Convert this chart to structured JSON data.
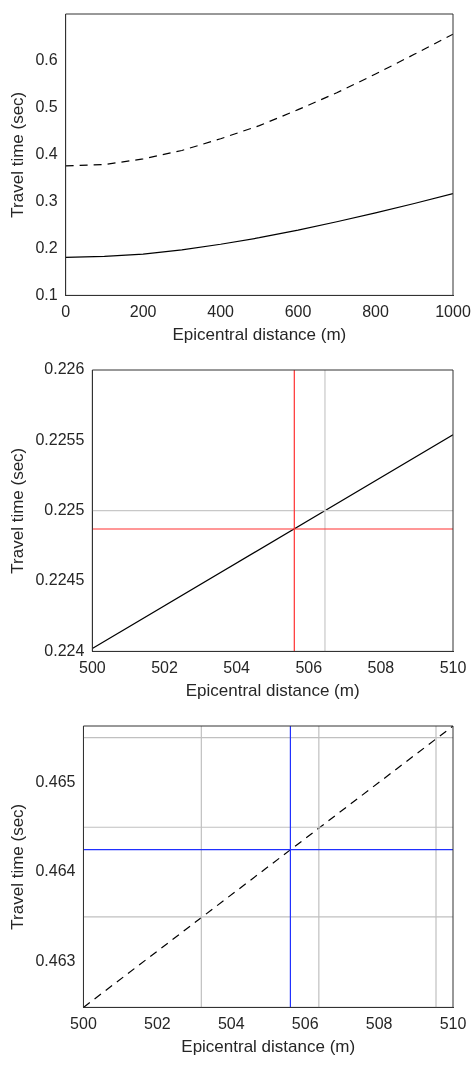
{
  "chart_data": [
    {
      "type": "line",
      "xlabel": "Epicentral distance (m)",
      "ylabel": "Travel time (sec)",
      "x": [
        0,
        100,
        200,
        300,
        400,
        500,
        600,
        700,
        800,
        900,
        1000
      ],
      "xlim": [
        0,
        1000
      ],
      "xticks": [
        0,
        200,
        400,
        600,
        800,
        1000
      ],
      "ylim": [
        0.1,
        0.7
      ],
      "yticks": [
        0.1,
        0.2,
        0.3,
        0.4,
        0.5,
        0.6
      ],
      "grid": false,
      "legend": false,
      "marker": "none",
      "series": [
        {
          "color": "#000000",
          "line_style": "solid",
          "values": [
            0.181,
            0.183,
            0.188,
            0.197,
            0.209,
            0.223,
            0.239,
            0.257,
            0.276,
            0.296,
            0.317
          ]
        },
        {
          "color": "#000000",
          "line_style": "dashed",
          "values": [
            0.376,
            0.379,
            0.391,
            0.409,
            0.434,
            0.462,
            0.496,
            0.532,
            0.572,
            0.614,
            0.657
          ]
        }
      ]
    },
    {
      "type": "line",
      "xlabel": "Epicentral distance (m)",
      "ylabel": "Travel time (sec)",
      "x": [
        500,
        510
      ],
      "xlim": [
        500,
        510
      ],
      "xticks": [
        500,
        502,
        504,
        506,
        508,
        510
      ],
      "ylim": [
        0.224,
        0.226
      ],
      "yticks": [
        0.224,
        0.2245,
        0.225,
        0.2255,
        0.226
      ],
      "grid": false,
      "legend": false,
      "marker": "none",
      "series": [
        {
          "color": "#000000",
          "line_style": "solid",
          "values": [
            0.22402,
            0.22554
          ]
        }
      ],
      "ref_lines": [
        {
          "axis": "x",
          "value": 506.45,
          "color": "#c8c8c8"
        },
        {
          "axis": "y",
          "value": 0.225,
          "color": "#c8c8c8"
        },
        {
          "axis": "x",
          "value": 505.6,
          "color": "#ff3030"
        },
        {
          "axis": "y",
          "value": 0.22487,
          "color": "#ff3030"
        }
      ]
    },
    {
      "type": "line",
      "xlabel": "Epicentral distance (m)",
      "ylabel": "Travel time (sec)",
      "x": [
        500,
        510
      ],
      "xlim": [
        500,
        510
      ],
      "xticks": [
        500,
        502,
        504,
        506,
        508,
        510
      ],
      "ylim": [
        0.46249,
        0.46563
      ],
      "yticks": [
        0.463,
        0.464,
        0.465
      ],
      "grid": false,
      "legend": false,
      "marker": "none",
      "series": [
        {
          "color": "#000000",
          "line_style": "dashed",
          "values": [
            0.46249,
            0.46563
          ]
        }
      ],
      "ref_lines": [
        {
          "axis": "x",
          "value": 503.19,
          "color": "#c0c0c0"
        },
        {
          "axis": "x",
          "value": 506.37,
          "color": "#c0c0c0"
        },
        {
          "axis": "x",
          "value": 509.54,
          "color": "#c0c0c0"
        },
        {
          "axis": "y",
          "value": 0.4635,
          "color": "#c0c0c0"
        },
        {
          "axis": "y",
          "value": 0.4645,
          "color": "#c0c0c0"
        },
        {
          "axis": "y",
          "value": 0.4655,
          "color": "#c0c0c0"
        },
        {
          "axis": "x",
          "value": 505.6,
          "color": "#2030ff"
        },
        {
          "axis": "y",
          "value": 0.46425,
          "color": "#2030ff"
        }
      ]
    }
  ]
}
